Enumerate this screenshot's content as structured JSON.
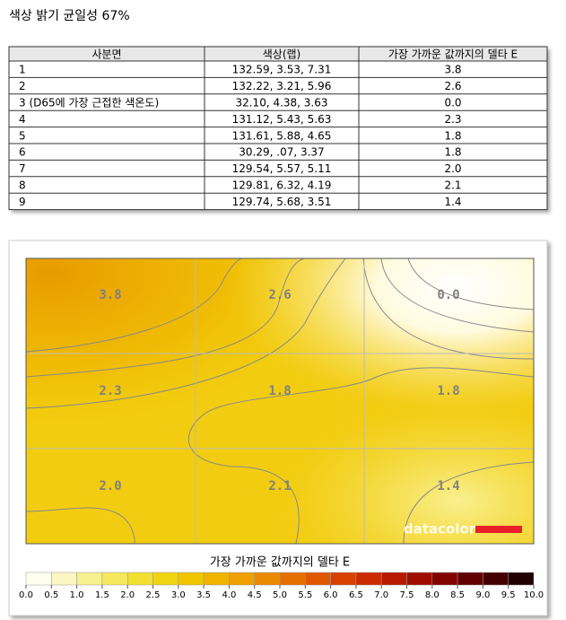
{
  "header": {
    "title": "색상 밝기 균일성 67%"
  },
  "table": {
    "columns": [
      "사분면",
      "색상(랩)",
      "가장 가까운 값까지의 델타 E"
    ],
    "rows": [
      [
        "1",
        "132.59,   3.53,   7.31",
        "3.8"
      ],
      [
        "2",
        "132.22,   3.21,   5.96",
        "2.6"
      ],
      [
        "3 (D65에 가장 근접한 색온도)",
        "32.10,   4.38,   3.63",
        "0.0"
      ],
      [
        "4",
        "131.12,   5.43,   5.63",
        "2.3"
      ],
      [
        "5",
        "131.61,   5.88,   4.65",
        "1.8"
      ],
      [
        "6",
        "30.29,   .07,   3.37",
        "1.8"
      ],
      [
        "7",
        "129.54,   5.57,   5.11",
        "2.0"
      ],
      [
        "8",
        "129.81,   6.32,   4.19",
        "2.1"
      ],
      [
        "9",
        "129.74,   5.68,   3.51",
        "1.4"
      ]
    ]
  },
  "heatmap": {
    "cells": [
      "3.8",
      "2.6",
      "0.0",
      "2.3",
      "1.8",
      "1.8",
      "2.0",
      "2.1",
      "1.4"
    ],
    "logo": "datacolor",
    "legend": {
      "title": "가장 가까운 값까지의 델타 E",
      "ticks": [
        "0.0",
        "0.5",
        "1.0",
        "1.5",
        "2.0",
        "2.5",
        "3.0",
        "3.5",
        "4.0",
        "4.5",
        "5.0",
        "5.5",
        "6.0",
        "6.5",
        "7.0",
        "7.5",
        "8.0",
        "8.5",
        "9.0",
        "9.5",
        "10.0"
      ]
    }
  }
}
